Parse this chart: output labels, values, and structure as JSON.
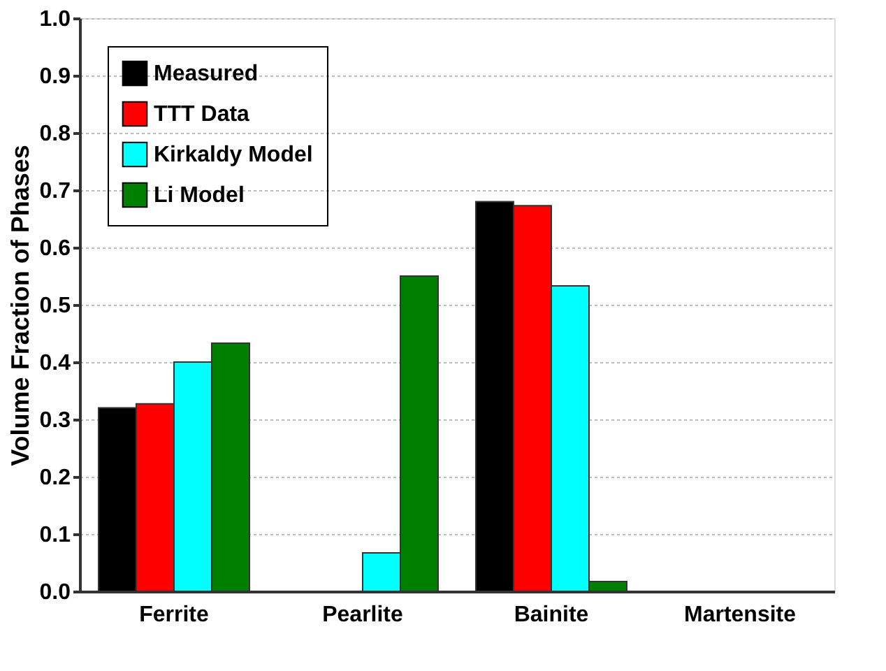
{
  "chart_data": {
    "type": "bar",
    "ylabel": "Volume Fraction of Phases",
    "categories": [
      "Ferrite",
      "Pearlite",
      "Bainite",
      "Martensite"
    ],
    "series": [
      {
        "name": "Measured",
        "color": "#000000",
        "values": [
          0.32,
          null,
          0.68,
          null
        ]
      },
      {
        "name": "TTT Data",
        "color": "#ff0000",
        "values": [
          0.327,
          null,
          0.673,
          null
        ]
      },
      {
        "name": "Kirkaldy Model",
        "color": "#00ffff",
        "values": [
          0.4,
          0.067,
          0.533,
          null
        ]
      },
      {
        "name": "Li Model",
        "color": "#008000",
        "values": [
          0.433,
          0.55,
          0.017,
          null
        ]
      }
    ],
    "ylim": [
      0,
      1.0
    ],
    "yticks": [
      {
        "value": 0,
        "label": "0.0"
      },
      {
        "value": 0.1,
        "label": "0.1"
      },
      {
        "value": 0.2,
        "label": "0.2"
      },
      {
        "value": 0.3,
        "label": "0.3"
      },
      {
        "value": 0.4,
        "label": "0.4"
      },
      {
        "value": 0.5,
        "label": "0.5"
      },
      {
        "value": 0.6,
        "label": "0.6"
      },
      {
        "value": 0.7,
        "label": "0.7"
      },
      {
        "value": 0.8,
        "label": "0.8"
      },
      {
        "value": 0.9,
        "label": "0.9"
      },
      {
        "value": 1.0,
        "label": "1.0"
      }
    ],
    "grid": "y",
    "legend": "top left"
  }
}
